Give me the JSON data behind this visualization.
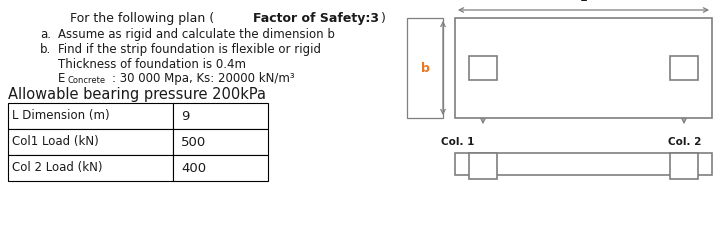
{
  "title1": "For the following plan (",
  "title2": "Factor of Safety:3",
  "title3": ")",
  "item_a_label": "a.",
  "item_a": "Assume as rigid and calculate the dimension b",
  "item_b_label": "b.",
  "item_b": "Find if the strip foundation is flexible or rigid",
  "item_c": "Thickness of foundation is 0.4m",
  "item_e": "E",
  "item_e_sub": "Concrete",
  "item_e_rest": ": 30 000 Mpa, Ks: 20000 kN/m³",
  "allowable": "Allowable bearing pressure 200kPa",
  "table_rows": [
    [
      "L Dimension (m)",
      "9"
    ],
    [
      "Col1 Load (kN)",
      "500"
    ],
    [
      "Col 2 Load (kN)",
      "400"
    ]
  ],
  "label_L": "L",
  "label_b": "b",
  "label_col1": "Col. 1",
  "label_col2": "Col. 2",
  "bg_color": "#ffffff",
  "text_color": "#1a1a1a",
  "draw_color": "#7f7f7f",
  "orange_color": "#e87722",
  "fig_width": 7.26,
  "fig_height": 2.47,
  "dpi": 100
}
